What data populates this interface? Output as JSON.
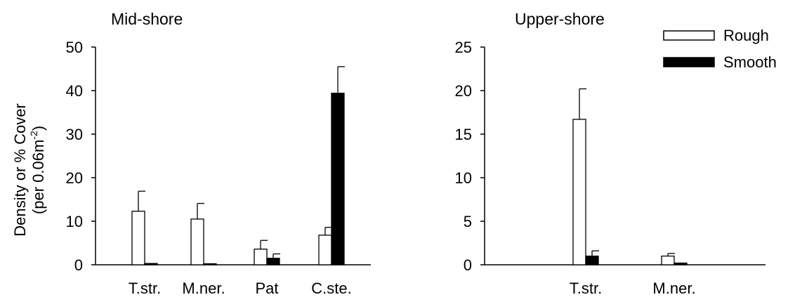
{
  "chart_data": [
    {
      "type": "bar",
      "title": "Mid-shore",
      "ylabel_line1": "Density  or % Cover",
      "ylabel_line2_prefix": "(per 0.06m",
      "ylabel_line2_sup": "-2",
      "ylabel_line2_suffix": ")",
      "ylim": [
        0,
        50
      ],
      "yticks": [
        "0",
        "10",
        "20",
        "30",
        "40",
        "50"
      ],
      "categories": [
        "T.str.",
        "M.ner.",
        "Pat",
        "C.ste."
      ],
      "series": [
        {
          "name": "Rough",
          "values": [
            12.3,
            10.5,
            3.6,
            6.8
          ],
          "errors": [
            4.6,
            3.6,
            2.0,
            1.8
          ]
        },
        {
          "name": "Smooth",
          "values": [
            0.3,
            0.2,
            1.5,
            39.4
          ],
          "errors": [
            0,
            0,
            1.0,
            6.1
          ]
        }
      ],
      "grid": false
    },
    {
      "type": "bar",
      "title": "Upper-shore",
      "ylim": [
        0,
        25
      ],
      "yticks": [
        "0",
        "5",
        "10",
        "15",
        "20",
        "25"
      ],
      "categories": [
        "T.str.",
        "M.ner."
      ],
      "series": [
        {
          "name": "Rough",
          "values": [
            16.7,
            1.0
          ],
          "errors": [
            3.5,
            0.3
          ]
        },
        {
          "name": "Smooth",
          "values": [
            1.0,
            0.2
          ],
          "errors": [
            0.6,
            0
          ]
        }
      ],
      "grid": false
    }
  ],
  "legend": {
    "placement": "top-right",
    "items": [
      {
        "label": "Rough",
        "fill": "#ffffff"
      },
      {
        "label": "Smooth",
        "fill": "#000000"
      }
    ]
  },
  "colors": {
    "rough_fill": "#ffffff",
    "smooth_fill": "#000000",
    "stroke": "#000000"
  }
}
